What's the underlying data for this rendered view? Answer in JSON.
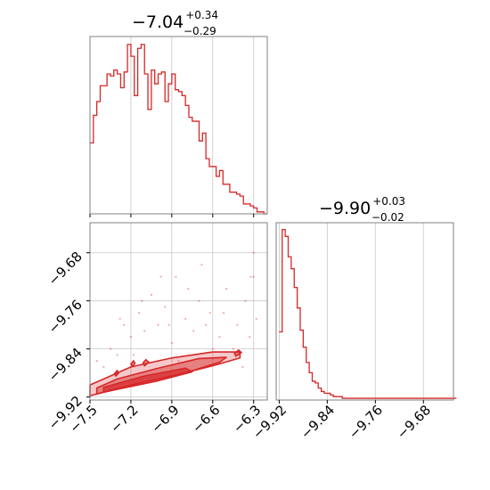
{
  "chart_data": {
    "type": "corner",
    "color": "#d62728",
    "panels": {
      "hist_x": {
        "type": "histogram",
        "title": {
          "median": "−7.04",
          "plus": "+0.34",
          "minus": "−0.29"
        },
        "xlim": [
          -7.5,
          -6.2
        ],
        "bins_start": -7.5,
        "bin_width": 0.025,
        "counts": [
          36,
          50,
          57,
          65,
          65,
          71,
          70,
          73,
          71,
          64,
          72,
          86,
          80,
          60,
          84,
          86,
          71,
          53,
          73,
          66,
          71,
          72,
          57,
          66,
          71,
          63,
          62,
          60,
          55,
          49,
          47,
          47,
          37,
          41,
          28,
          24,
          24,
          19,
          22,
          15,
          15,
          11,
          11,
          10,
          9,
          5,
          5,
          4,
          3,
          1,
          1,
          0
        ],
        "ymax": 90
      },
      "hist_y": {
        "type": "histogram",
        "title": {
          "median": "−9.90",
          "plus": "+0.03",
          "minus": "−0.02"
        },
        "xlim": [
          -9.925,
          -9.63
        ],
        "bins_start": -9.92,
        "bin_width": 0.005,
        "counts": [
          40,
          100,
          96,
          84,
          77,
          66,
          54,
          41,
          31,
          22,
          16,
          11,
          10,
          7,
          5,
          4,
          4,
          3,
          2,
          2,
          2,
          1,
          1,
          1,
          1,
          1,
          1,
          1,
          1,
          1,
          1,
          1,
          1,
          1,
          1,
          1,
          1,
          1,
          1,
          1,
          1,
          1,
          1,
          1,
          1,
          1,
          1,
          1,
          1,
          1,
          1,
          1,
          1,
          1,
          1,
          1,
          1,
          1,
          1
        ],
        "ymax": 104
      },
      "joint": {
        "type": "contour",
        "xlim": [
          -7.5,
          -6.2
        ],
        "ylim": [
          -9.925,
          -9.63
        ],
        "xticks": [
          "−7.5",
          "−7.2",
          "−6.9",
          "−6.6",
          "−6.3"
        ],
        "xtick_values": [
          -7.5,
          -7.2,
          -6.9,
          -6.6,
          -6.3
        ],
        "yticks": [
          "−9.68",
          "−9.76",
          "−9.84",
          "−9.92"
        ],
        "ytick_values": [
          -9.68,
          -9.76,
          -9.84,
          -9.92
        ],
        "grid": true,
        "contours": [
          [
            [
              -7.5,
              -9.918
            ],
            [
              -7.2,
              -9.9
            ],
            [
              -6.9,
              -9.885
            ],
            [
              -6.6,
              -9.868
            ],
            [
              -6.4,
              -9.855
            ],
            [
              -6.4,
              -9.845
            ],
            [
              -6.6,
              -9.845
            ],
            [
              -6.9,
              -9.855
            ],
            [
              -7.2,
              -9.87
            ],
            [
              -7.5,
              -9.9
            ]
          ],
          [
            [
              -7.45,
              -9.915
            ],
            [
              -7.1,
              -9.895
            ],
            [
              -6.8,
              -9.88
            ],
            [
              -6.55,
              -9.862
            ],
            [
              -6.5,
              -9.854
            ],
            [
              -6.7,
              -9.856
            ],
            [
              -7.0,
              -9.872
            ],
            [
              -7.3,
              -9.89
            ],
            [
              -7.45,
              -9.905
            ]
          ],
          [
            [
              -7.4,
              -9.912
            ],
            [
              -7.0,
              -9.893
            ],
            [
              -6.75,
              -9.878
            ],
            [
              -6.8,
              -9.872
            ],
            [
              -7.1,
              -9.885
            ],
            [
              -7.4,
              -9.904
            ]
          ]
        ],
        "islands": [
          [
            [
              -7.31,
              -9.885
            ],
            [
              -7.29,
              -9.88
            ],
            [
              -7.3,
              -9.876
            ],
            [
              -7.32,
              -9.881
            ]
          ],
          [
            [
              -7.19,
              -9.869
            ],
            [
              -7.17,
              -9.864
            ],
            [
              -7.18,
              -9.86
            ],
            [
              -7.2,
              -9.865
            ]
          ],
          [
            [
              -7.1,
              -9.868
            ],
            [
              -7.07,
              -9.862
            ],
            [
              -7.09,
              -9.858
            ],
            [
              -7.11,
              -9.863
            ]
          ],
          [
            [
              -6.43,
              -9.852
            ],
            [
              -6.39,
              -9.846
            ],
            [
              -6.41,
              -9.842
            ],
            [
              -6.44,
              -9.847
            ]
          ]
        ],
        "scatter": [
          [
            -6.3,
            -9.68
          ],
          [
            -6.32,
            -9.72
          ],
          [
            -6.28,
            -9.79
          ],
          [
            -6.36,
            -9.76
          ],
          [
            -6.42,
            -9.8
          ],
          [
            -6.5,
            -9.74
          ],
          [
            -6.55,
            -9.82
          ],
          [
            -6.62,
            -9.78
          ],
          [
            -6.7,
            -9.76
          ],
          [
            -6.74,
            -9.81
          ],
          [
            -6.8,
            -9.79
          ],
          [
            -6.87,
            -9.72
          ],
          [
            -6.9,
            -9.83
          ],
          [
            -6.95,
            -9.77
          ],
          [
            -7.0,
            -9.8
          ],
          [
            -7.05,
            -9.75
          ],
          [
            -7.1,
            -9.81
          ],
          [
            -7.14,
            -9.78
          ],
          [
            -7.2,
            -9.82
          ],
          [
            -7.25,
            -9.8
          ],
          [
            -7.3,
            -9.85
          ],
          [
            -7.35,
            -9.84
          ],
          [
            -7.4,
            -9.87
          ],
          [
            -7.45,
            -9.86
          ],
          [
            -6.33,
            -9.82
          ],
          [
            -6.45,
            -9.84
          ],
          [
            -6.6,
            -9.84
          ],
          [
            -6.68,
            -9.7
          ],
          [
            -6.85,
            -9.86
          ],
          [
            -7.0,
            -9.86
          ],
          [
            -7.18,
            -9.85
          ],
          [
            -6.38,
            -9.87
          ],
          [
            -6.52,
            -9.78
          ],
          [
            -6.78,
            -9.74
          ],
          [
            -6.98,
            -9.72
          ],
          [
            -7.12,
            -9.76
          ],
          [
            -6.3,
            -9.72
          ],
          [
            -6.65,
            -9.8
          ],
          [
            -6.92,
            -9.8
          ],
          [
            -7.28,
            -9.79
          ]
        ]
      },
      "hist_y_axis": {
        "xticks": [
          "−9.92",
          "−9.84",
          "−9.76",
          "−9.68"
        ],
        "xtick_values": [
          -9.92,
          -9.84,
          -9.76,
          -9.68
        ]
      }
    }
  }
}
